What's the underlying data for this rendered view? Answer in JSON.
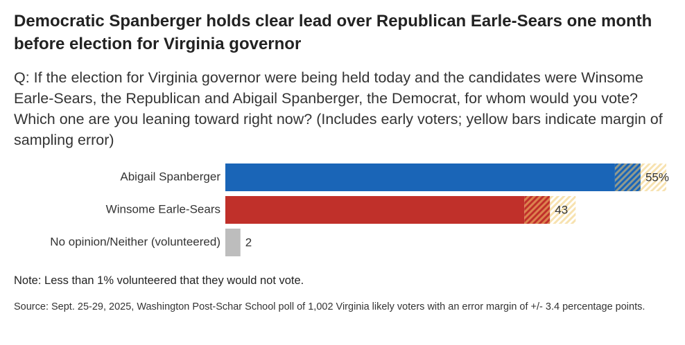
{
  "chart_data": {
    "type": "bar",
    "title": "Democratic Spanberger holds clear lead over Republican Earle-Sears one month before election for Virginia governor",
    "subtitle": "Q: If the election for Virginia governor were being held today and the candidates were Winsome Earle-Sears, the Republican and Abigail Spanberger, the Democrat, for whom would you vote? Which one are you leaning toward right now? (Includes early voters; yellow bars indicate margin of sampling error)",
    "categories": [
      "Abigail Spanberger",
      "Winsome Earle-Sears",
      "No opinion/Neither (volunteered)"
    ],
    "values": [
      55,
      43,
      2
    ],
    "value_labels": [
      "55%",
      "43",
      "2"
    ],
    "errors": [
      3.4,
      3.4,
      null
    ],
    "colors": [
      "#1a65b7",
      "#c0302a",
      "#bdbdbd"
    ],
    "note": "Note: Less than 1% volunteered that they would not vote.",
    "source": "Source: Sept. 25-29, 2025, Washington Post-Schar School poll of 1,002 Virginia likely voters with an error margin of +/- 3.4 percentage points."
  }
}
